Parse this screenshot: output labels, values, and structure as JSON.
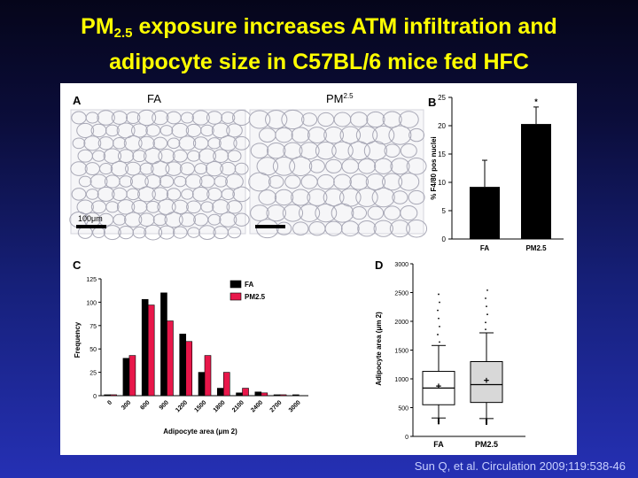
{
  "slide": {
    "title_line1_a": "PM",
    "title_line1_sub": "2.5",
    "title_line1_b": " exposure increases ATM infiltration and",
    "title_line2": "adipocyte size in C57BL/6 mice fed HFC",
    "citation": "Sun Q, et al. Circulation 2009;119:538-46"
  },
  "panels": {
    "a_letter": "A",
    "b_letter": "B",
    "c_letter": "C",
    "d_letter": "D",
    "a_label_fa": "FA",
    "a_label_pm": "PM",
    "a_label_pm_sub": "2.5",
    "scale_bar": "100μm"
  },
  "colors": {
    "fa": "#000000",
    "pm25": "#e8174a",
    "box_pm25": "#d8d8d8"
  },
  "chart_data": [
    {
      "type": "bar",
      "panel": "B",
      "categories": [
        "FA",
        "PM2.5"
      ],
      "values": [
        9.2,
        20.3
      ],
      "errors": [
        4.7,
        3.0
      ],
      "ylabel": "% F4/80 pos nuclei",
      "ylim": [
        0,
        25
      ],
      "yticks": [
        0,
        5,
        10,
        15,
        20,
        25
      ],
      "annotation": "*"
    },
    {
      "type": "bar",
      "panel": "C",
      "categories": [
        "0",
        "300",
        "600",
        "900",
        "1200",
        "1500",
        "1800",
        "2100",
        "2400",
        "2700",
        "3000"
      ],
      "series": [
        {
          "name": "FA",
          "values": [
            1,
            40,
            103,
            110,
            66,
            25,
            8,
            3,
            4,
            1,
            1
          ]
        },
        {
          "name": "PM2.5",
          "values": [
            1,
            43,
            97,
            80,
            58,
            43,
            25,
            8,
            3,
            1,
            0
          ]
        }
      ],
      "xlabel": "Adipocyte area (μm 2)",
      "ylabel": "Frequency",
      "ylim": [
        0,
        125
      ],
      "yticks": [
        0,
        25,
        50,
        75,
        100,
        125
      ],
      "legend": "top-right"
    },
    {
      "type": "box",
      "panel": "D",
      "categories": [
        "FA",
        "PM2.5"
      ],
      "boxes": [
        {
          "whisker_low": 320,
          "q1": 550,
          "median": 840,
          "q3": 1130,
          "whisker_high": 1580,
          "mean": 880
        },
        {
          "whisker_low": 310,
          "q1": 590,
          "median": 900,
          "q3": 1300,
          "whisker_high": 1800,
          "mean": 980
        }
      ],
      "ylabel": "Adipocyte area (μm 2)",
      "ylim": [
        0,
        3000
      ],
      "yticks": [
        0,
        500,
        1000,
        1500,
        2000,
        2500,
        3000
      ]
    }
  ]
}
